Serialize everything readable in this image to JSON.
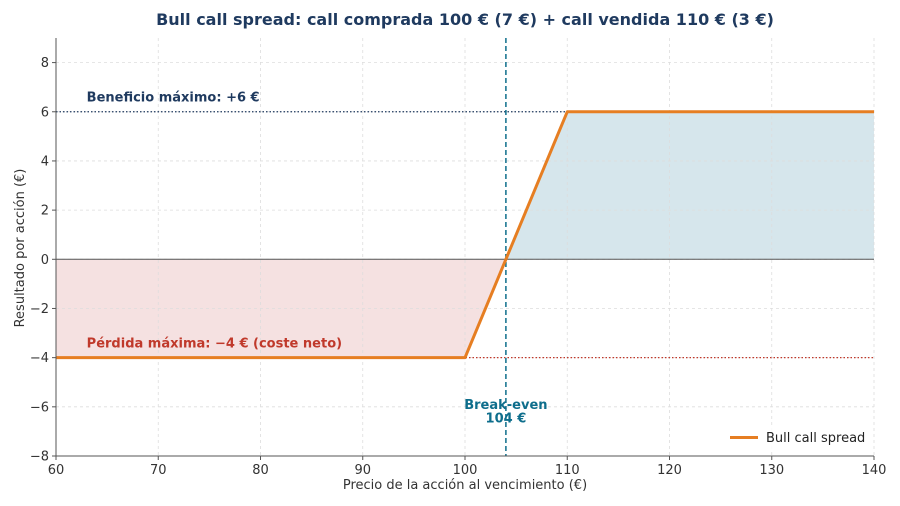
{
  "chart_data": {
    "type": "line",
    "title": "Bull call spread: call comprada 100 € (7 €) + call vendida 110 € (3 €)",
    "xlabel": "Precio de la acción al vencimiento (€)",
    "ylabel": "Resultado por acción (€)",
    "xlim": [
      60,
      140
    ],
    "ylim": [
      -8,
      9
    ],
    "xticks": [
      60,
      70,
      80,
      90,
      100,
      110,
      120,
      130,
      140
    ],
    "yticks": [
      -8,
      -6,
      -4,
      -2,
      0,
      2,
      4,
      6,
      8
    ],
    "ytick_labels": [
      "−8",
      "−6",
      "−4",
      "−2",
      "0",
      "2",
      "4",
      "6",
      "8"
    ],
    "grid": true,
    "legend_position": "bottom-right",
    "series": [
      {
        "name": "Bull call spread",
        "x": [
          60,
          100,
          110,
          140
        ],
        "y": [
          -4,
          -4,
          6,
          6
        ],
        "color": "#e67e22"
      }
    ],
    "reference_lines": {
      "max_profit": {
        "y": 6,
        "color": "#1f3a5f"
      },
      "max_loss": {
        "y": -4,
        "color": "#c0392b"
      },
      "zero": {
        "y": 0,
        "color": "#555555"
      },
      "break_even": {
        "x": 104,
        "color": "#0e6e8c"
      }
    },
    "fills": {
      "profit_color": "#d6e6ec",
      "loss_color": "#f5e1e1"
    },
    "annotations": {
      "max_profit": {
        "text": "Beneficio máximo: +6 €",
        "x": 63,
        "y": 6.6,
        "color": "#1f3a5f"
      },
      "max_loss": {
        "text": "Pérdida máxima: −4 € (coste neto)",
        "x": 63,
        "y": -3.4,
        "color": "#c0392b"
      },
      "break_even_line1": {
        "text": "Break-even",
        "x": 104,
        "y": -5.9,
        "color": "#0e6e8c"
      },
      "break_even_line2": {
        "text": "104 €",
        "x": 104,
        "y": -6.45,
        "color": "#0e6e8c"
      }
    },
    "title_color": "#1f3a5f"
  }
}
